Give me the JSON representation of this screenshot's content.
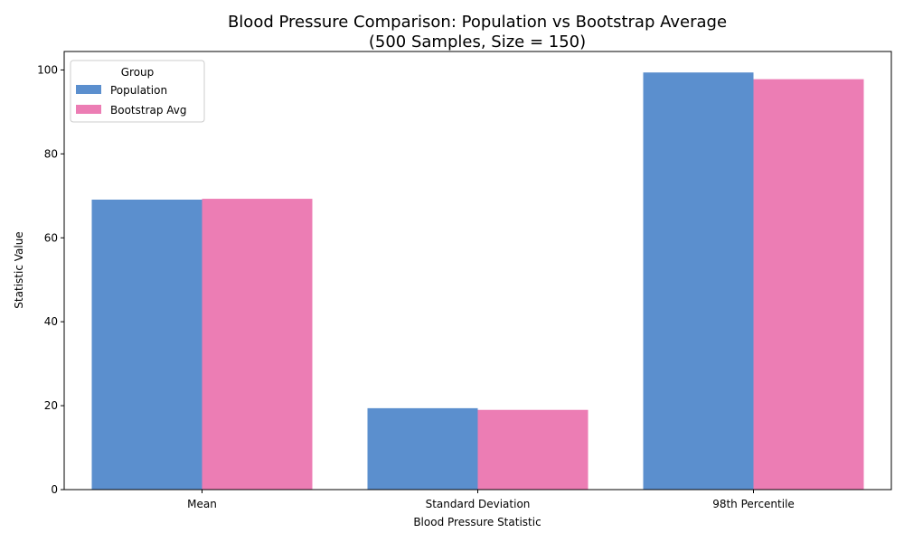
{
  "chart_data": {
    "type": "bar",
    "title": "Blood Pressure Comparison: Population vs Bootstrap Average",
    "subtitle": "(500 Samples, Size = 150)",
    "xlabel": "Blood Pressure Statistic",
    "ylabel": "Statistic Value",
    "categories": [
      "Mean",
      "Standard Deviation",
      "98th Percentile"
    ],
    "series": [
      {
        "name": "Population",
        "values": [
          69.1,
          19.4,
          99.4
        ],
        "color": "#5b8fce"
      },
      {
        "name": "Bootstrap Avg",
        "values": [
          69.3,
          19.0,
          97.8
        ],
        "color": "#ec7db4"
      }
    ],
    "ylim": [
      0,
      104.4
    ],
    "yticks": [
      0,
      20,
      40,
      60,
      80,
      100
    ],
    "legend": {
      "title": "Group",
      "placement": "top-left"
    },
    "grid": false
  }
}
